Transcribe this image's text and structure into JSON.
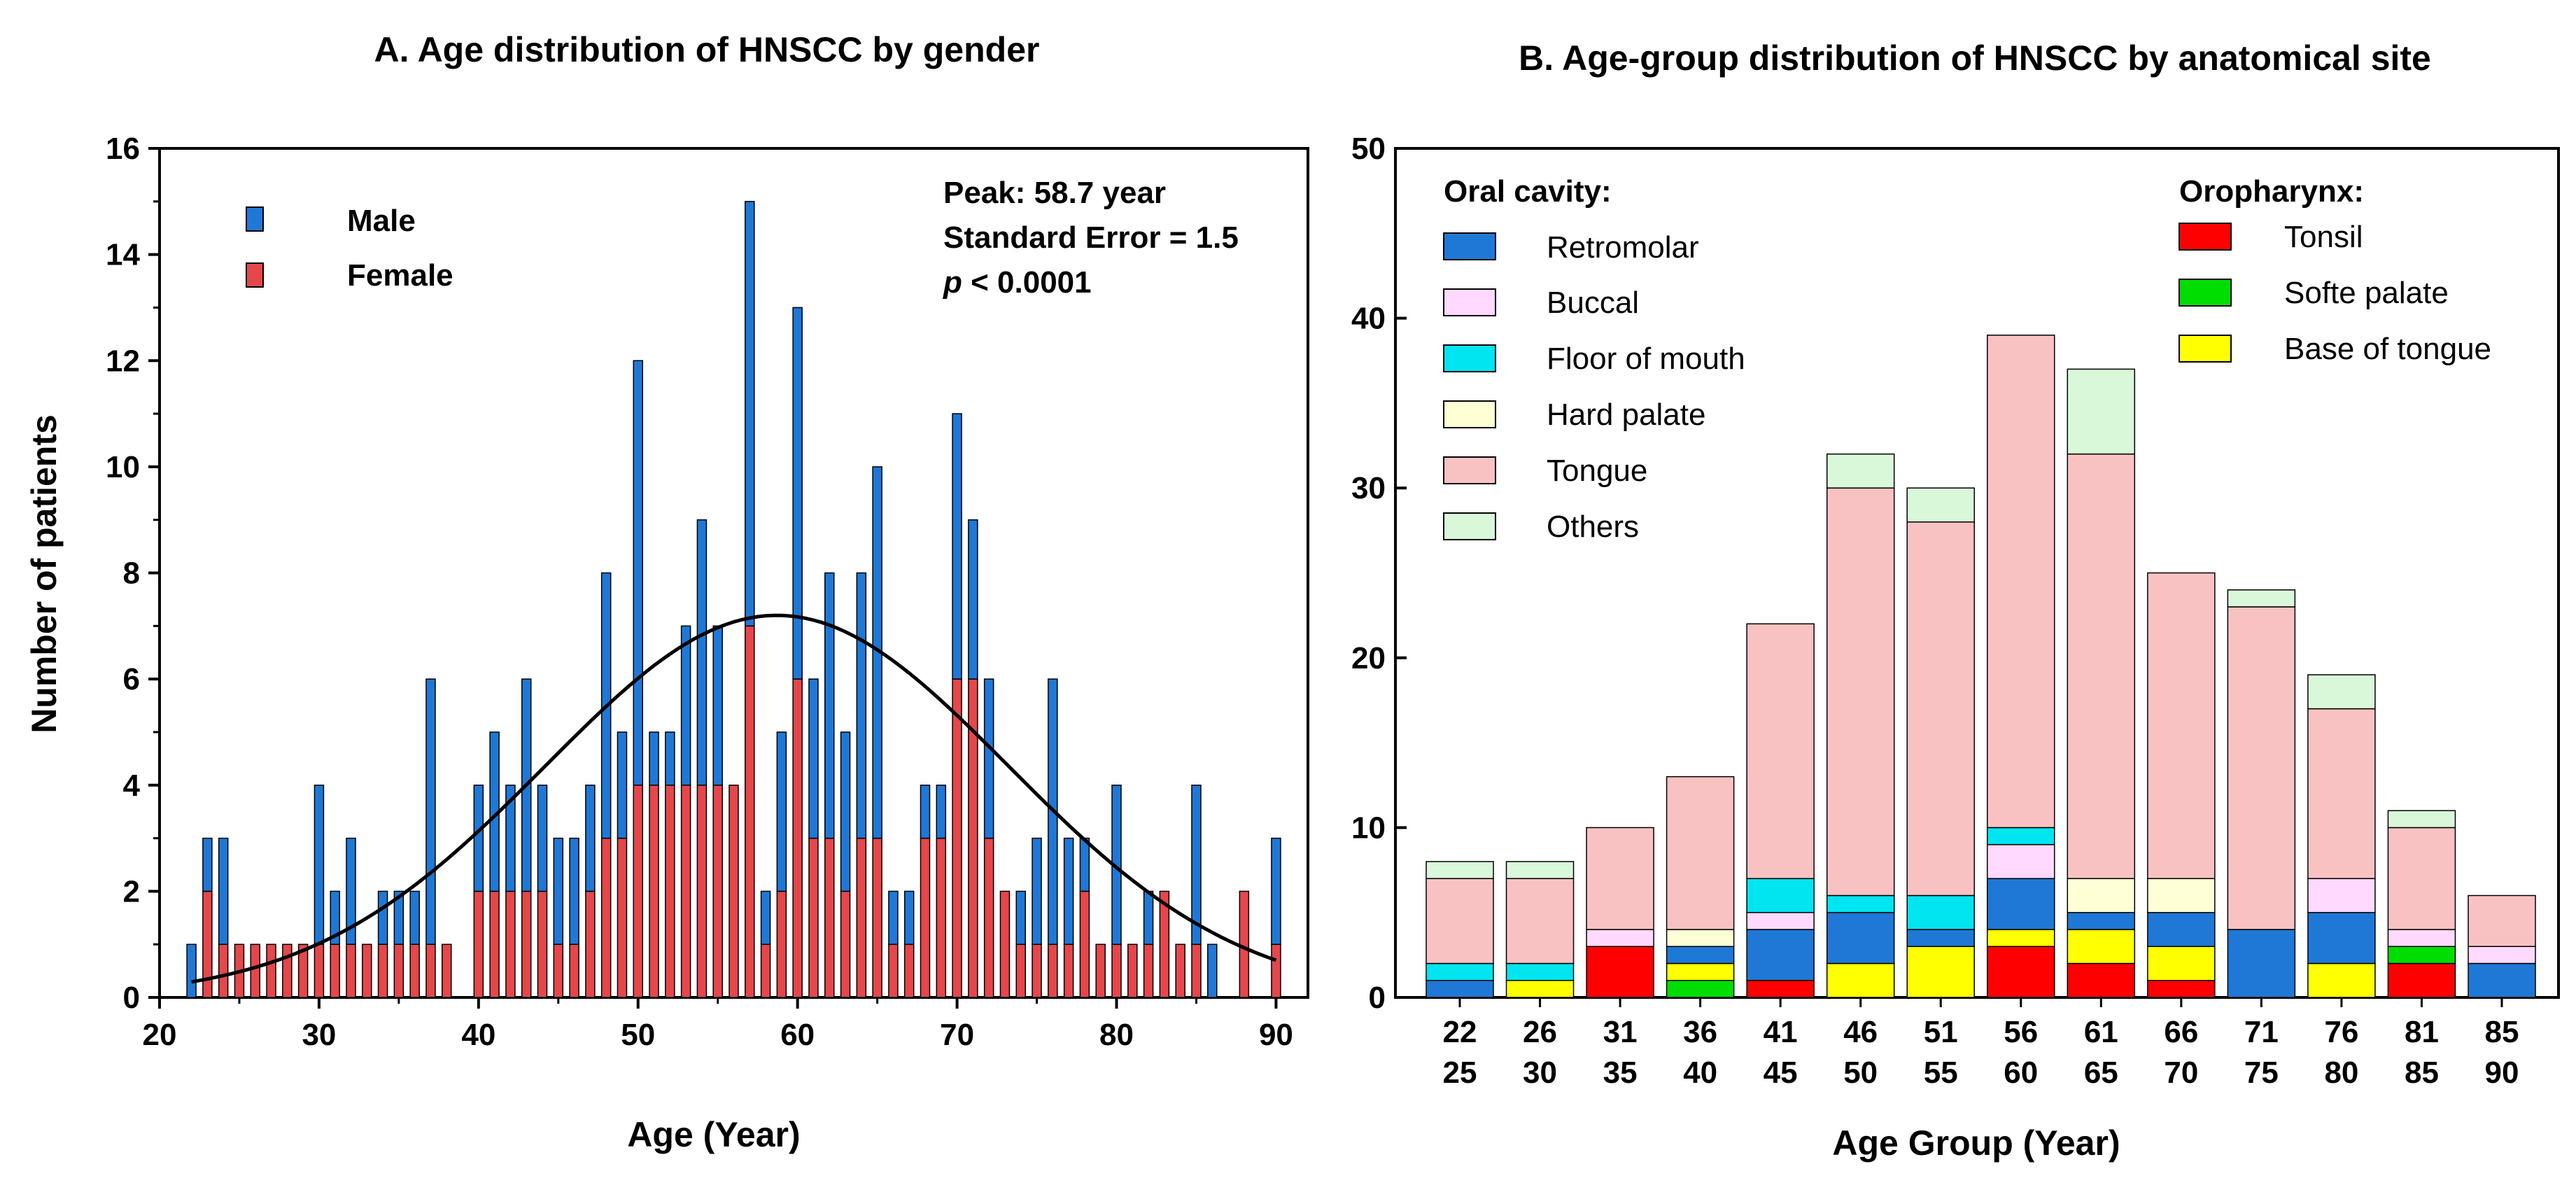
{
  "chart_data": [
    {
      "type": "bar",
      "title": "A. Age distribution of HNSCC by gender",
      "xlabel": "Age (Year)",
      "ylabel": "Number of patients",
      "xlim": [
        20,
        92
      ],
      "ylim": [
        0,
        16
      ],
      "x_ticks": [
        "20",
        "30",
        "40",
        "50",
        "60",
        "70",
        "80",
        "90"
      ],
      "y_ticks": [
        "0",
        "2",
        "4",
        "6",
        "8",
        "10",
        "12",
        "14",
        "16"
      ],
      "legend": [
        {
          "label": "Male",
          "color": "#1f78d6"
        },
        {
          "label": "Female",
          "color": "#e5474b"
        }
      ],
      "annotation": {
        "peak": "Peak: 58.7 year",
        "se": "Standard Error = 1.5",
        "p_symbol": "p",
        "p_rest": " < 0.0001"
      },
      "fit_curve": {
        "type": "gaussian",
        "peak_x": 58.7,
        "peak_y": 7.2,
        "sigma": 14.5
      },
      "x": [
        22,
        23,
        24,
        25,
        26,
        27,
        28,
        29,
        30,
        31,
        32,
        33,
        34,
        35,
        36,
        37,
        38,
        40,
        41,
        42,
        43,
        44,
        45,
        46,
        47,
        48,
        49,
        50,
        51,
        52,
        53,
        54,
        55,
        56,
        57,
        58,
        59,
        60,
        61,
        62,
        63,
        64,
        65,
        66,
        67,
        68,
        69,
        70,
        71,
        72,
        73,
        74,
        75,
        76,
        77,
        78,
        79,
        80,
        81,
        82,
        83,
        84,
        85,
        86,
        88,
        90
      ],
      "series": [
        {
          "name": "Female",
          "color": "#e5474b",
          "values": [
            0,
            2,
            1,
            1,
            1,
            1,
            1,
            1,
            1,
            1,
            1,
            1,
            1,
            1,
            1,
            1,
            1,
            2,
            2,
            2,
            2,
            2,
            1,
            1,
            2,
            3,
            3,
            4,
            4,
            4,
            4,
            4,
            4,
            4,
            7,
            1,
            2,
            6,
            3,
            3,
            2,
            3,
            3,
            1,
            1,
            3,
            3,
            6,
            6,
            3,
            2,
            1,
            1,
            1,
            1,
            2,
            1,
            1,
            1,
            1,
            2,
            1,
            1,
            0,
            2,
            1
          ]
        },
        {
          "name": "Male",
          "color": "#1f78d6",
          "values": [
            1,
            1,
            2,
            0,
            0,
            0,
            0,
            0,
            3,
            1,
            2,
            0,
            1,
            1,
            1,
            5,
            0,
            2,
            3,
            2,
            4,
            2,
            2,
            2,
            2,
            5,
            2,
            8,
            1,
            1,
            3,
            5,
            3,
            0,
            8,
            1,
            3,
            7,
            3,
            5,
            3,
            5,
            7,
            1,
            1,
            1,
            1,
            5,
            3,
            3,
            0,
            1,
            2,
            5,
            2,
            1,
            0,
            3,
            0,
            1,
            0,
            0,
            3,
            1,
            0,
            2
          ]
        }
      ]
    },
    {
      "type": "bar",
      "stacked": true,
      "title": "B. Age-group distribution of HNSCC by anatomical site",
      "xlabel": "Age Group (Year)",
      "ylabel": "",
      "ylim": [
        0,
        50
      ],
      "y_ticks": [
        "0",
        "10",
        "20",
        "30",
        "40",
        "50"
      ],
      "categories": [
        [
          "22",
          "25"
        ],
        [
          "26",
          "30"
        ],
        [
          "31",
          "35"
        ],
        [
          "36",
          "40"
        ],
        [
          "41",
          "45"
        ],
        [
          "46",
          "50"
        ],
        [
          "51",
          "55"
        ],
        [
          "56",
          "60"
        ],
        [
          "61",
          "65"
        ],
        [
          "66",
          "70"
        ],
        [
          "71",
          "75"
        ],
        [
          "76",
          "80"
        ],
        [
          "81",
          "85"
        ],
        [
          "85",
          "90"
        ]
      ],
      "legend_groups": [
        {
          "title": "Oral cavity:",
          "entries": [
            "Retromolar",
            "Buccal",
            "Floor of mouth",
            "Hard palate",
            "Tongue",
            "Others"
          ]
        },
        {
          "title": "Oropharynx:",
          "entries": [
            "Tonsil",
            "Softe palate",
            "Base of tongue"
          ]
        }
      ],
      "series": [
        {
          "name": "Tonsil",
          "color": "#ff0000",
          "values": [
            0,
            0,
            3,
            0,
            1,
            0,
            0,
            3,
            2,
            1,
            0,
            0,
            2,
            0
          ]
        },
        {
          "name": "Softe palate",
          "color": "#00dd00",
          "values": [
            0,
            0,
            0,
            1,
            0,
            0,
            0,
            0,
            0,
            0,
            0,
            0,
            1,
            0
          ]
        },
        {
          "name": "Base of tongue",
          "color": "#ffff00",
          "values": [
            0,
            1,
            0,
            1,
            0,
            2,
            3,
            1,
            2,
            2,
            0,
            2,
            0,
            0
          ]
        },
        {
          "name": "Retromolar",
          "color": "#1f78d6",
          "values": [
            1,
            0,
            0,
            1,
            3,
            3,
            1,
            3,
            1,
            2,
            4,
            3,
            0,
            2
          ]
        },
        {
          "name": "Buccal",
          "color": "#ffd9ff",
          "values": [
            0,
            0,
            1,
            0,
            1,
            0,
            0,
            2,
            0,
            0,
            0,
            2,
            1,
            1
          ]
        },
        {
          "name": "Floor of mouth",
          "color": "#00e5f0",
          "values": [
            1,
            1,
            0,
            0,
            2,
            1,
            2,
            1,
            0,
            0,
            0,
            0,
            0,
            0
          ]
        },
        {
          "name": "Hard palate",
          "color": "#ffffd6",
          "values": [
            0,
            0,
            0,
            1,
            0,
            0,
            0,
            0,
            2,
            2,
            0,
            0,
            0,
            0
          ]
        },
        {
          "name": "Tongue",
          "color": "#f9c2c2",
          "values": [
            5,
            5,
            6,
            9,
            15,
            24,
            22,
            29,
            25,
            18,
            19,
            10,
            6,
            3
          ]
        },
        {
          "name": "Others",
          "color": "#d9f7d9",
          "values": [
            1,
            1,
            0,
            0,
            0,
            2,
            2,
            0,
            5,
            0,
            1,
            2,
            1,
            0
          ]
        }
      ]
    }
  ]
}
